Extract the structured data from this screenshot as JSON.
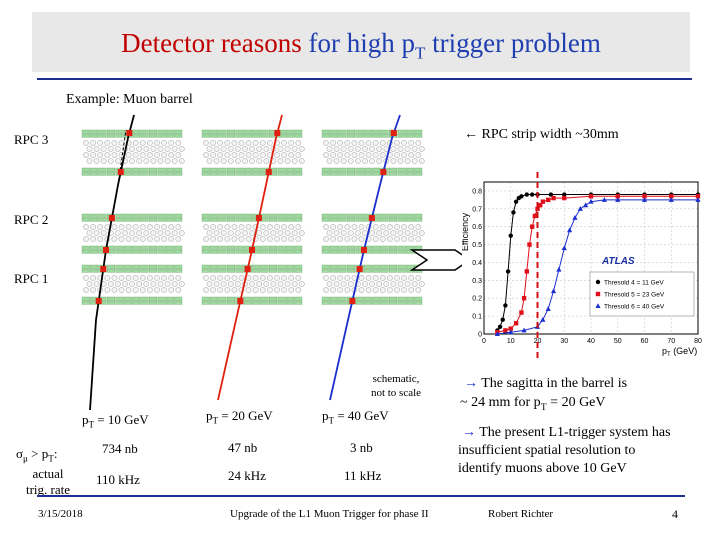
{
  "slide": {
    "title_red": "Detector reasons",
    "title_blue_part1": "for high p",
    "title_blue_sub": "T",
    "title_blue_part2": " trigger problem",
    "subtitle": "Example: Muon barrel",
    "strip_note": "← RPC strip width ~30mm",
    "schematic_note_line1": "schematic,",
    "schematic_note_line2": "not to scale",
    "footer_date": "3/15/2018",
    "footer_center": "Upgrade of the L1 Muon Trigger for phase II",
    "footer_author": "Robert Richter",
    "footer_page": "4"
  },
  "rpc_labels": [
    "RPC 3",
    "RPC 2",
    "RPC 1"
  ],
  "panels": [
    {
      "pt_label": "p",
      "pt_sub": "T",
      "pt_value": " = 10 GeV",
      "sigma": "734 nb",
      "rate": "110 kHz",
      "track_color": "#000000"
    },
    {
      "pt_label": "p",
      "pt_sub": "T",
      "pt_value": " = 20 GeV",
      "sigma": "47 nb",
      "rate": "24 kHz",
      "track_color": "#e02010"
    },
    {
      "pt_label": "p",
      "pt_sub": "T",
      "pt_value": " = 40 GeV",
      "sigma": "3 nb",
      "rate": "11 kHz",
      "track_color": "#1a2fcc"
    }
  ],
  "table_rows": {
    "sigma_label": "σ",
    "sigma_sub": "μ",
    "sigma_rest": " > p",
    "sigma_rest_sub": "T",
    "sigma_colon": ":",
    "rate_label_line1": "actual",
    "rate_label_line2": "trig. rate"
  },
  "bullets": [
    {
      "arrow": "→",
      "line1": " The sagitta in the barrel is",
      "line2_a": "~ 24 mm for p",
      "line2_sub": "T",
      "line2_b": " = 20 GeV"
    },
    {
      "arrow": "→",
      "line1": " The present L1-trigger system has",
      "line2": "insufficient spatial resolution to",
      "line3": "identify muons above 10 GeV"
    }
  ],
  "chart_data": {
    "type": "line",
    "ylabel": "Efficiency",
    "xlabel": "p",
    "xlabel_sub": "T",
    "xlabel_unit": " (GeV)",
    "xlim": [
      0,
      80
    ],
    "ylim": [
      0,
      0.85
    ],
    "x_ticks": [
      "0",
      "10",
      "20",
      "30",
      "40",
      "50",
      "60",
      "70",
      "80"
    ],
    "y_ticks": [
      "0",
      "0.1",
      "0.2",
      "0.3",
      "0.4",
      "0.5",
      "0.6",
      "0.7",
      "0.8"
    ],
    "annotation": "ATLAS",
    "threshold_marker_x": 20,
    "series": [
      {
        "name": "Thresold 4 = 11 GeV",
        "color": "#000000",
        "marker": "circle",
        "x": [
          5,
          6,
          7,
          8,
          9,
          10,
          11,
          12,
          13,
          14,
          16,
          18,
          20,
          25,
          30,
          40,
          50,
          60,
          70,
          80
        ],
        "y": [
          0.02,
          0.04,
          0.08,
          0.16,
          0.35,
          0.55,
          0.68,
          0.74,
          0.76,
          0.77,
          0.78,
          0.78,
          0.78,
          0.78,
          0.78,
          0.78,
          0.78,
          0.78,
          0.78,
          0.78
        ]
      },
      {
        "name": "Thresold 5 = 23 GeV",
        "color": "#e0101a",
        "marker": "square",
        "x": [
          5,
          8,
          10,
          12,
          14,
          15,
          16,
          17,
          18,
          19,
          20,
          21,
          22,
          24,
          26,
          30,
          40,
          50,
          60,
          70,
          80
        ],
        "y": [
          0.01,
          0.02,
          0.03,
          0.06,
          0.12,
          0.2,
          0.35,
          0.5,
          0.6,
          0.66,
          0.7,
          0.72,
          0.74,
          0.75,
          0.76,
          0.76,
          0.77,
          0.77,
          0.77,
          0.77,
          0.77
        ]
      },
      {
        "name": "Thresold 6 = 40 GeV",
        "color": "#1a2fd0",
        "marker": "triangle",
        "x": [
          5,
          10,
          15,
          20,
          22,
          24,
          26,
          28,
          30,
          32,
          34,
          36,
          38,
          40,
          45,
          50,
          60,
          70,
          80
        ],
        "y": [
          0.0,
          0.01,
          0.02,
          0.04,
          0.08,
          0.14,
          0.24,
          0.36,
          0.48,
          0.58,
          0.65,
          0.7,
          0.72,
          0.74,
          0.75,
          0.75,
          0.75,
          0.75,
          0.75
        ]
      }
    ]
  }
}
